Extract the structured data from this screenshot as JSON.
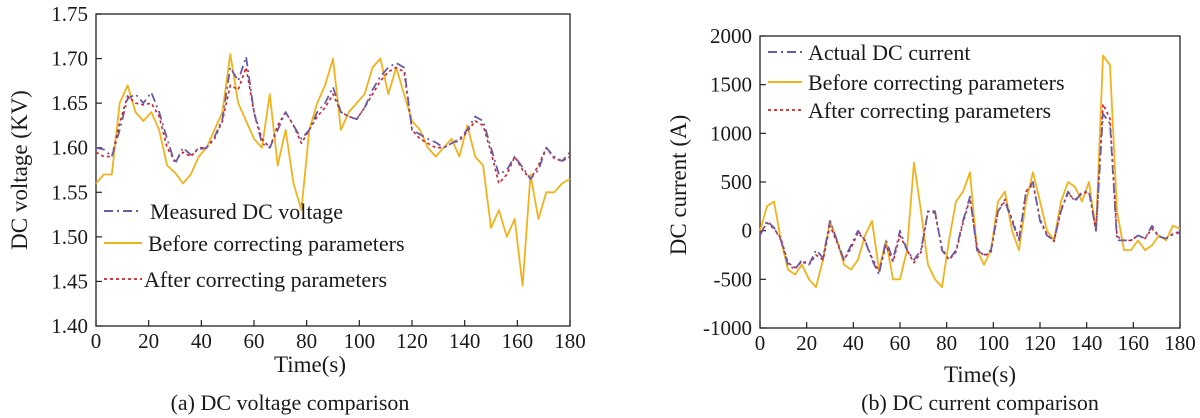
{
  "chart_data": [
    {
      "type": "line",
      "title": "(a) DC voltage comparison",
      "xlabel": "Time(s)",
      "ylabel": "DC voltage (KV)",
      "xlim": [
        0,
        180
      ],
      "ylim": [
        1.4,
        1.75
      ],
      "xticks": [
        "0",
        "20",
        "40",
        "60",
        "80",
        "100",
        "120",
        "140",
        "160",
        "180"
      ],
      "yticks": [
        "1.40",
        "1.45",
        "1.50",
        "1.55",
        "1.60",
        "1.65",
        "1.70",
        "1.75"
      ],
      "legend_position": "lower-left",
      "colors": {
        "measured": "#6a5aa8",
        "before": "#f2b21c",
        "after": "#d0202a"
      },
      "x": [
        0,
        3,
        6,
        9,
        12,
        15,
        18,
        21,
        24,
        27,
        30,
        33,
        36,
        39,
        42,
        45,
        48,
        51,
        54,
        57,
        60,
        63,
        66,
        69,
        72,
        75,
        78,
        81,
        84,
        87,
        90,
        93,
        96,
        99,
        102,
        105,
        108,
        111,
        114,
        117,
        120,
        123,
        126,
        129,
        132,
        135,
        138,
        141,
        144,
        147,
        150,
        153,
        156,
        159,
        162,
        165,
        168,
        171,
        174,
        177,
        180
      ],
      "series": [
        {
          "name": "Measured DC voltage",
          "values": [
            1.6,
            1.598,
            1.59,
            1.62,
            1.655,
            1.66,
            1.65,
            1.662,
            1.64,
            1.61,
            1.582,
            1.6,
            1.592,
            1.598,
            1.6,
            1.612,
            1.632,
            1.69,
            1.675,
            1.702,
            1.64,
            1.605,
            1.6,
            1.62,
            1.64,
            1.625,
            1.61,
            1.62,
            1.64,
            1.65,
            1.668,
            1.64,
            1.635,
            1.632,
            1.645,
            1.665,
            1.68,
            1.69,
            1.695,
            1.69,
            1.62,
            1.615,
            1.61,
            1.606,
            1.6,
            1.605,
            1.61,
            1.62,
            1.635,
            1.63,
            1.6,
            1.57,
            1.575,
            1.59,
            1.578,
            1.565,
            1.575,
            1.6,
            1.59,
            1.585,
            1.595
          ]
        },
        {
          "name": "Before correcting parameters",
          "values": [
            1.56,
            1.57,
            1.57,
            1.65,
            1.67,
            1.64,
            1.63,
            1.64,
            1.62,
            1.58,
            1.572,
            1.56,
            1.57,
            1.59,
            1.6,
            1.62,
            1.64,
            1.705,
            1.65,
            1.63,
            1.61,
            1.6,
            1.66,
            1.58,
            1.62,
            1.56,
            1.53,
            1.62,
            1.65,
            1.67,
            1.7,
            1.62,
            1.64,
            1.65,
            1.66,
            1.69,
            1.7,
            1.66,
            1.69,
            1.66,
            1.63,
            1.62,
            1.6,
            1.59,
            1.6,
            1.61,
            1.59,
            1.625,
            1.59,
            1.58,
            1.51,
            1.53,
            1.5,
            1.52,
            1.445,
            1.57,
            1.52,
            1.55,
            1.55,
            1.56,
            1.565
          ]
        },
        {
          "name": "After correcting parameters",
          "values": [
            1.595,
            1.59,
            1.59,
            1.628,
            1.658,
            1.65,
            1.648,
            1.65,
            1.635,
            1.6,
            1.585,
            1.595,
            1.59,
            1.6,
            1.6,
            1.61,
            1.63,
            1.67,
            1.665,
            1.69,
            1.64,
            1.61,
            1.6,
            1.625,
            1.64,
            1.625,
            1.605,
            1.62,
            1.635,
            1.645,
            1.66,
            1.64,
            1.635,
            1.632,
            1.645,
            1.66,
            1.675,
            1.685,
            1.69,
            1.685,
            1.62,
            1.61,
            1.605,
            1.6,
            1.6,
            1.605,
            1.608,
            1.618,
            1.63,
            1.625,
            1.595,
            1.56,
            1.57,
            1.59,
            1.575,
            1.565,
            1.58,
            1.6,
            1.588,
            1.585,
            1.59
          ]
        }
      ]
    },
    {
      "type": "line",
      "title": "(b) DC current comparison",
      "xlabel": "Time(s)",
      "ylabel": "DC current (A)",
      "xlim": [
        0,
        180
      ],
      "ylim": [
        -1000,
        2000
      ],
      "xticks": [
        "0",
        "20",
        "40",
        "60",
        "80",
        "100",
        "120",
        "140",
        "160",
        "180"
      ],
      "yticks": [
        "-1000",
        "-500",
        "0",
        "500",
        "1000",
        "1500",
        "2000"
      ],
      "legend_position": "top-left",
      "colors": {
        "measured": "#6a5aa8",
        "before": "#f2b21c",
        "after": "#d0202a"
      },
      "x": [
        0,
        3,
        6,
        9,
        12,
        15,
        18,
        21,
        24,
        27,
        30,
        33,
        36,
        39,
        42,
        45,
        48,
        51,
        54,
        57,
        60,
        63,
        66,
        69,
        72,
        75,
        78,
        81,
        84,
        87,
        90,
        93,
        96,
        99,
        102,
        105,
        108,
        111,
        114,
        117,
        120,
        123,
        126,
        129,
        132,
        135,
        138,
        141,
        144,
        147,
        150,
        153,
        156,
        159,
        162,
        165,
        168,
        171,
        174,
        177,
        180
      ],
      "series": [
        {
          "name": "Actual DC current",
          "values": [
            -50,
            100,
            30,
            -100,
            -350,
            -400,
            -300,
            -350,
            -200,
            -280,
            100,
            -100,
            -300,
            -150,
            0,
            -100,
            -300,
            -450,
            -100,
            -300,
            0,
            -200,
            -300,
            -200,
            200,
            200,
            -200,
            -300,
            -200,
            100,
            350,
            -200,
            -250,
            -200,
            200,
            300,
            100,
            -100,
            400,
            500,
            100,
            -50,
            -100,
            200,
            400,
            300,
            400,
            400,
            0,
            1200,
            1100,
            -100,
            -100,
            -100,
            -50,
            -80,
            50,
            -60,
            -80,
            -40,
            -20
          ]
        },
        {
          "name": "Before correcting parameters",
          "values": [
            0,
            250,
            300,
            -100,
            -400,
            -450,
            -350,
            -500,
            -580,
            -300,
            100,
            -100,
            -350,
            -400,
            -300,
            -50,
            100,
            -400,
            -100,
            -500,
            -500,
            -200,
            700,
            200,
            -350,
            -500,
            -580,
            -100,
            300,
            400,
            600,
            -200,
            -350,
            -200,
            300,
            400,
            0,
            -200,
            300,
            600,
            300,
            0,
            -100,
            300,
            500,
            450,
            300,
            500,
            0,
            1800,
            1700,
            200,
            -200,
            -200,
            -100,
            -200,
            -150,
            -50,
            -100,
            50,
            20
          ]
        },
        {
          "name": "After correcting parameters",
          "values": [
            -30,
            80,
            20,
            -80,
            -330,
            -380,
            -320,
            -350,
            -250,
            -300,
            50,
            -120,
            -300,
            -180,
            -20,
            -100,
            -280,
            -420,
            -150,
            -320,
            -50,
            -200,
            -330,
            -220,
            200,
            180,
            -180,
            -300,
            -220,
            80,
            330,
            -180,
            -260,
            -220,
            200,
            320,
            120,
            -80,
            400,
            480,
            120,
            -40,
            -110,
            220,
            380,
            320,
            380,
            400,
            0,
            1300,
            1150,
            -60,
            -100,
            -100,
            -50,
            -80,
            20,
            -60,
            -80,
            -30,
            -10
          ]
        }
      ]
    }
  ]
}
